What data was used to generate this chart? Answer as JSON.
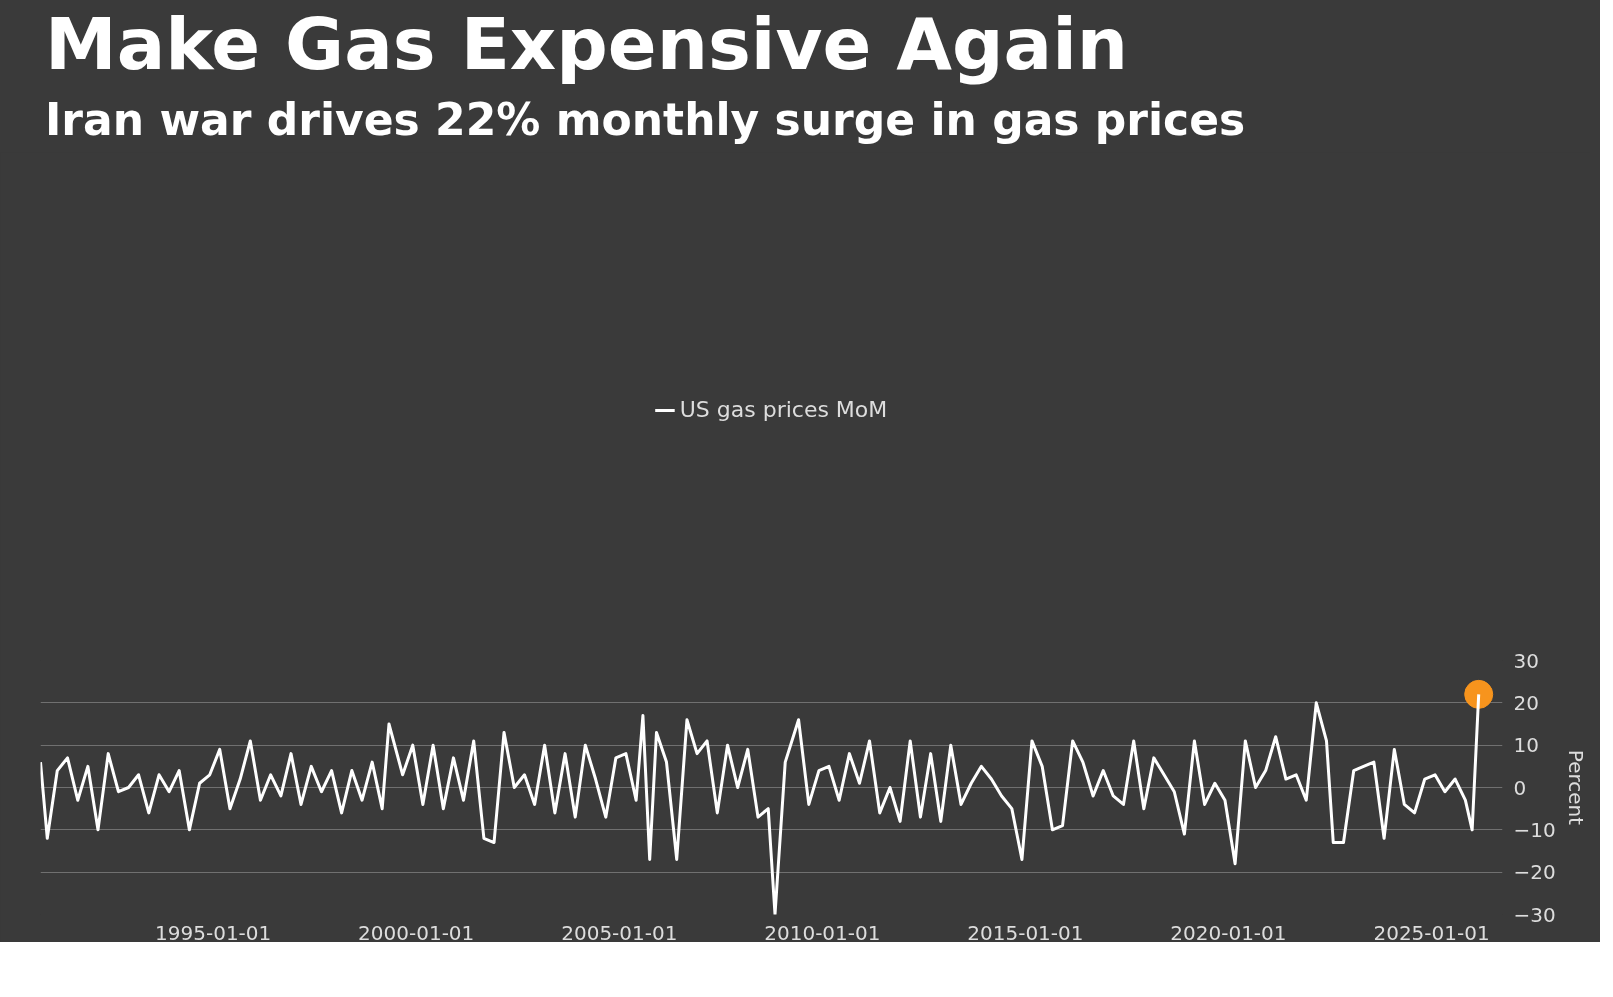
{
  "chart_data": {
    "type": "line",
    "title": "Make Gas Expensive Again",
    "subtitle": "Iran war drives 22% monthly surge in gas prices",
    "ylabel": "Percent",
    "legend": "top",
    "grid": "y",
    "xlim": [
      "1990-10-01",
      "2026-10-01"
    ],
    "ylim": [
      -30,
      30
    ],
    "yticks": [
      -30,
      -20,
      -10,
      0,
      10,
      20,
      30
    ],
    "xticks": [
      "1995-01-01",
      "2000-01-01",
      "2005-01-01",
      "2010-01-01",
      "2015-01-01",
      "2020-01-01",
      "2025-01-01"
    ],
    "series": [
      {
        "name": "US gas prices MoM",
        "color": "#ffffff",
        "x": [
          "1990-10",
          "1990-12",
          "1991-03",
          "1991-06",
          "1991-09",
          "1991-12",
          "1992-03",
          "1992-06",
          "1992-09",
          "1992-12",
          "1993-03",
          "1993-06",
          "1993-09",
          "1993-12",
          "1994-03",
          "1994-06",
          "1994-09",
          "1994-12",
          "1995-03",
          "1995-06",
          "1995-09",
          "1995-12",
          "1996-03",
          "1996-06",
          "1996-09",
          "1996-12",
          "1997-03",
          "1997-06",
          "1997-09",
          "1997-12",
          "1998-03",
          "1998-06",
          "1998-09",
          "1998-12",
          "1999-03",
          "1999-05",
          "1999-09",
          "1999-12",
          "2000-03",
          "2000-06",
          "2000-09",
          "2000-12",
          "2001-03",
          "2001-06",
          "2001-09",
          "2001-12",
          "2002-03",
          "2002-06",
          "2002-09",
          "2002-12",
          "2003-03",
          "2003-06",
          "2003-09",
          "2003-12",
          "2004-03",
          "2004-06",
          "2004-09",
          "2004-12",
          "2005-03",
          "2005-06",
          "2005-08",
          "2005-10",
          "2005-12",
          "2006-03",
          "2006-06",
          "2006-09",
          "2006-12",
          "2007-03",
          "2007-06",
          "2007-09",
          "2007-12",
          "2008-03",
          "2008-06",
          "2008-09",
          "2008-11",
          "2009-02",
          "2009-06",
          "2009-09",
          "2009-12",
          "2010-03",
          "2010-06",
          "2010-09",
          "2010-12",
          "2011-03",
          "2011-06",
          "2011-09",
          "2011-12",
          "2012-03",
          "2012-06",
          "2012-09",
          "2012-12",
          "2013-03",
          "2013-06",
          "2013-09",
          "2013-12",
          "2014-03",
          "2014-06",
          "2014-09",
          "2014-12",
          "2015-03",
          "2015-06",
          "2015-09",
          "2015-12",
          "2016-03",
          "2016-06",
          "2016-09",
          "2016-12",
          "2017-03",
          "2017-06",
          "2017-09",
          "2017-12",
          "2018-03",
          "2018-06",
          "2018-09",
          "2018-12",
          "2019-03",
          "2019-06",
          "2019-09",
          "2019-12",
          "2020-03",
          "2020-06",
          "2020-09",
          "2020-12",
          "2021-03",
          "2021-06",
          "2021-09",
          "2021-12",
          "2022-03",
          "2022-06",
          "2022-08",
          "2022-11",
          "2023-02",
          "2023-05",
          "2023-08",
          "2023-11",
          "2024-02",
          "2024-05",
          "2024-08",
          "2024-11",
          "2025-02",
          "2025-05",
          "2025-08",
          "2025-11",
          "2026-01",
          "2026-03"
        ],
        "values": [
          6,
          -12,
          4,
          7,
          -3,
          5,
          -10,
          8,
          -1,
          0,
          3,
          -6,
          3,
          -1,
          4,
          -10,
          1,
          3,
          9,
          -5,
          2,
          11,
          -3,
          3,
          -2,
          8,
          -4,
          5,
          -1,
          4,
          -6,
          4,
          -3,
          6,
          -5,
          15,
          3,
          10,
          -4,
          10,
          -5,
          7,
          -3,
          11,
          -12,
          -13,
          13,
          0,
          3,
          -4,
          10,
          -6,
          8,
          -7,
          10,
          2,
          -7,
          7,
          8,
          -3,
          17,
          -17,
          13,
          6,
          -17,
          16,
          8,
          11,
          -6,
          10,
          0,
          9,
          -7,
          -5,
          -30,
          6,
          16,
          -4,
          4,
          5,
          -3,
          8,
          1,
          11,
          -6,
          0,
          -8,
          11,
          -7,
          8,
          -8,
          10,
          -4,
          1,
          5,
          2,
          -2,
          -5,
          -17,
          11,
          5,
          -10,
          -9,
          11,
          6,
          -2,
          4,
          -2,
          -4,
          11,
          -5,
          7,
          3,
          -1,
          -11,
          11,
          -4,
          1,
          -3,
          -18,
          11,
          0,
          4,
          12,
          2,
          3,
          -3,
          20,
          11,
          -13,
          -13,
          4,
          5,
          6,
          -12,
          9,
          -4,
          -6,
          2,
          3,
          -1,
          2,
          -3,
          -10,
          22
        ]
      },
      {
        "type": "scatter",
        "color": "#f7941d",
        "x": [
          "2026-03"
        ],
        "values": [
          22
        ]
      }
    ]
  }
}
